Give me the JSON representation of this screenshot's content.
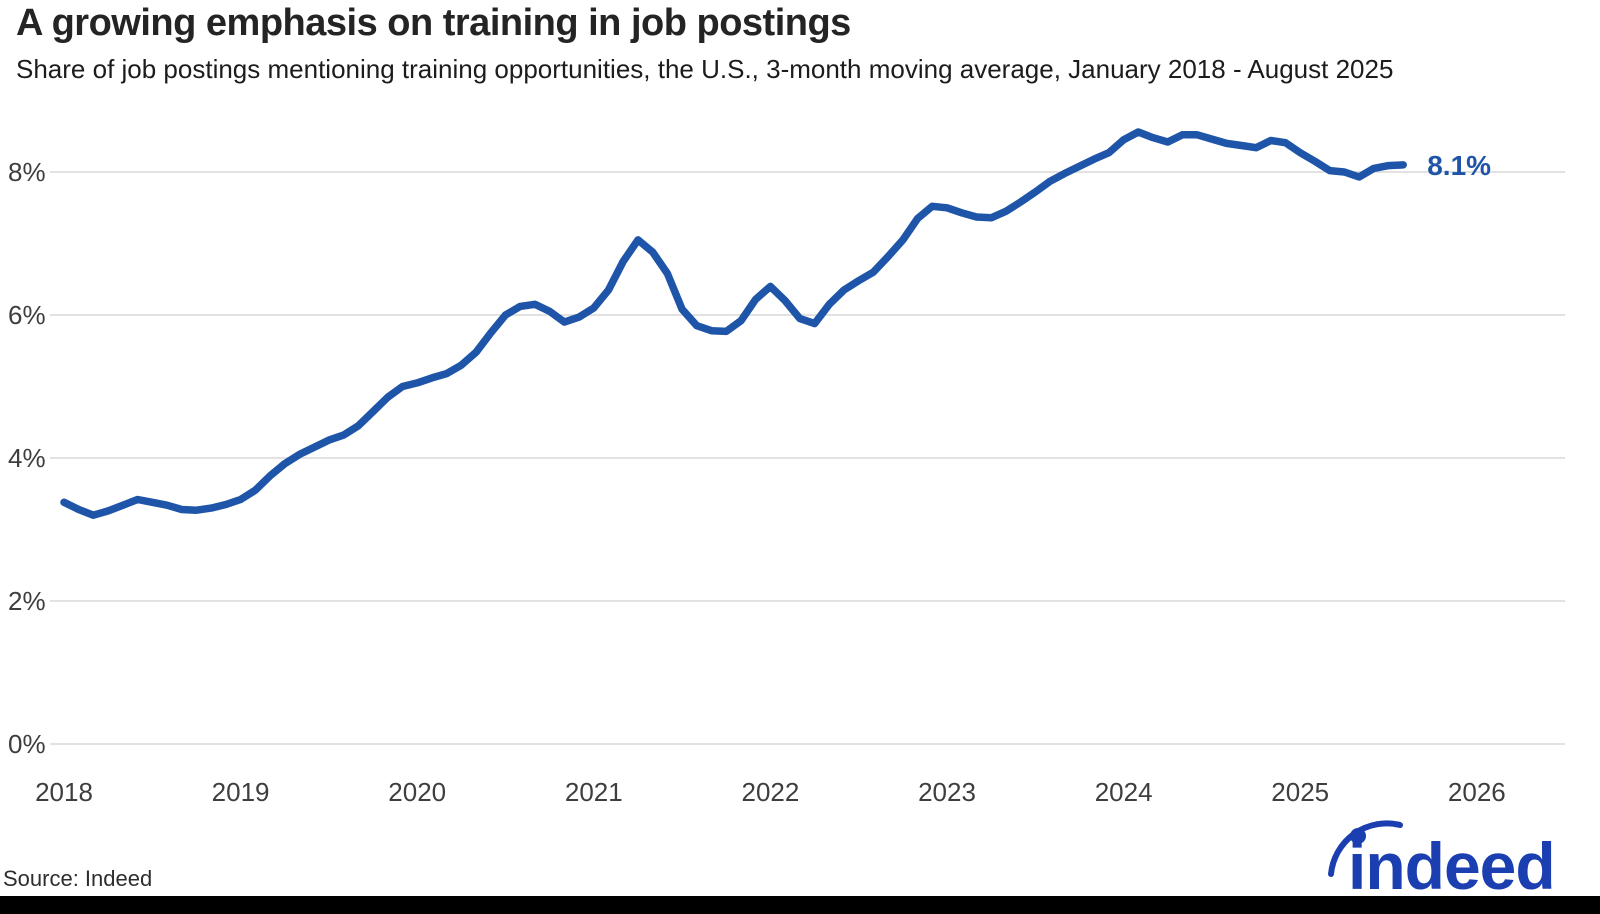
{
  "title": "A growing emphasis on training in job postings",
  "subtitle": "Share of job postings mentioning training opportunities, the U.S., 3-month moving average, January 2018 - August 2025",
  "source": "Source: Indeed",
  "logo_text": "indeed",
  "colors": {
    "line": "#1E55A8",
    "end_label": "#1E55A8",
    "grid": "#D9D9D9",
    "axis_text": "#3E3E3E",
    "title_text": "#242424",
    "subtitle_text": "#1C1C1C",
    "source_text": "#2E2E2E",
    "logo_blue": "#1B3FB0",
    "bottom_bar": "#000000",
    "background": "#FFFFFF"
  },
  "chart_data": {
    "type": "line",
    "title": "A growing emphasis on training in job postings",
    "subtitle": "Share of job postings mentioning training opportunities, the U.S., 3-month moving average, January 2018 - August 2025",
    "xlabel": "",
    "ylabel": "",
    "grid": "horizontal",
    "legend": "none",
    "x_tick_labels": [
      "2018",
      "2019",
      "2020",
      "2021",
      "2022",
      "2023",
      "2024",
      "2025",
      "2026"
    ],
    "y_tick_labels": [
      "0%",
      "2%",
      "4%",
      "6%",
      "8%"
    ],
    "ylim": [
      0,
      9
    ],
    "series": [
      {
        "name": "Share of job postings mentioning training opportunities (3-month moving average)",
        "frequency": "monthly",
        "start": "2018-01",
        "end": "2025-08",
        "unit": "%",
        "end_label": "8.1%",
        "values": [
          3.38,
          3.28,
          3.2,
          3.26,
          3.34,
          3.42,
          3.38,
          3.34,
          3.28,
          3.27,
          3.3,
          3.35,
          3.42,
          3.55,
          3.75,
          3.92,
          4.05,
          4.15,
          4.25,
          4.32,
          4.45,
          4.65,
          4.85,
          5.0,
          5.05,
          5.12,
          5.18,
          5.3,
          5.48,
          5.75,
          6.0,
          6.12,
          6.15,
          6.05,
          5.9,
          5.97,
          6.1,
          6.35,
          6.75,
          7.05,
          6.88,
          6.58,
          6.08,
          5.85,
          5.78,
          5.77,
          5.92,
          6.22,
          6.4,
          6.2,
          5.95,
          5.88,
          6.15,
          6.35,
          6.48,
          6.6,
          6.82,
          7.05,
          7.35,
          7.52,
          7.5,
          7.43,
          7.37,
          7.36,
          7.45,
          7.58,
          7.72,
          7.87,
          7.98,
          8.08,
          8.18,
          8.27,
          8.45,
          8.56,
          8.48,
          8.42,
          8.52,
          8.52,
          8.46,
          8.4,
          8.37,
          8.34,
          8.44,
          8.41,
          8.27,
          8.15,
          8.02,
          8.0,
          7.93,
          8.05,
          8.09,
          8.1
        ]
      }
    ]
  }
}
